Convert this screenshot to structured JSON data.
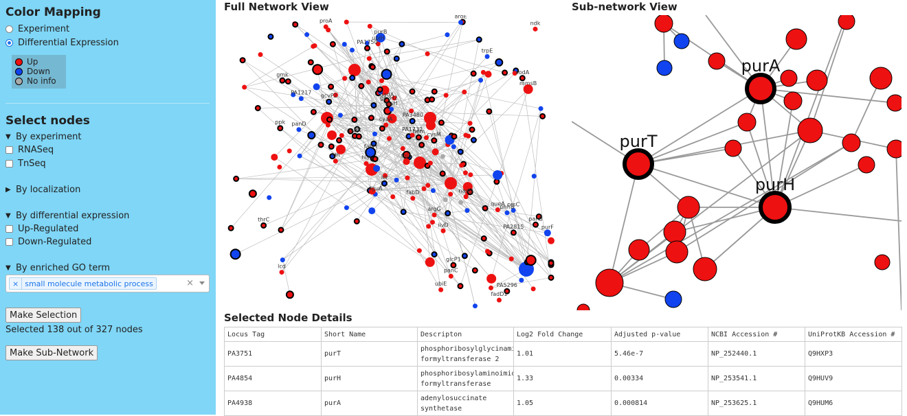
{
  "sidebar": {
    "color_mapping_title": "Color Mapping",
    "mode_experiment": "Experiment",
    "mode_diff": "Differential Expression",
    "legend": {
      "up": "Up",
      "down": "Down",
      "noinfo": "No info"
    },
    "select_nodes_title": "Select nodes",
    "by_experiment": "By experiment",
    "rnaseq": "RNASeq",
    "tnseq": "TnSeq",
    "by_localization": "By localization",
    "by_diff_expr": "By differential expression",
    "up_regulated": "Up-Regulated",
    "down_regulated": "Down-Regulated",
    "by_go": "By enriched GO term",
    "go_tag": "small molecule metabolic process",
    "go_clear": "×",
    "make_selection": "Make Selection",
    "selected_text": "Selected 138 out of 327 nodes",
    "make_subnetwork": "Make Sub-Network"
  },
  "colors": {
    "up": "#ee1111",
    "down": "#1144ee",
    "noinfo": "#aaaaaa",
    "sidebar": "#7fd6f7"
  },
  "full_network": {
    "title": "Full Network View",
    "labels": [
      "trpE",
      "PA3480",
      "fabH",
      "purK",
      "codA",
      "ndk",
      "cyaA",
      "fadD1",
      "fabD",
      "ppk",
      "PA5296",
      "gmk",
      "phhB",
      "cysM",
      "PA2815",
      "dguA",
      "hisI",
      "PA1217",
      "lcd",
      "prsC",
      "mmsB",
      "dadA",
      "alr",
      "ldh",
      "ilvD",
      "argG",
      "PA1750",
      "ubiE",
      "ubiH",
      "folA",
      "glcP1",
      "gcvP2",
      "hisH",
      "gcvH2",
      "queA",
      "purF",
      "panB",
      "aroE",
      "thrC",
      "proA",
      "PA1732",
      "purB",
      "hem",
      "panC",
      "panD",
      "nadD"
    ]
  },
  "sub_network": {
    "title": "Sub-network View",
    "labels": {
      "purA": "purA",
      "purT": "purT",
      "purH": "purH"
    }
  },
  "details": {
    "title": "Selected Node Details",
    "columns": [
      "Locus Tag",
      "Short Name",
      "Descripton",
      "Log2 Fold Change",
      "Adjusted p-value",
      "NCBI Accession #",
      "UniProtKB Accession #"
    ],
    "rows": [
      {
        "locus": "PA3751",
        "name": "purT",
        "desc": "phosphoribosylglycinamide formyltransferase 2",
        "log2": "1.01",
        "padj": "5.46e-7",
        "ncbi": "NP_252440.1",
        "uniprot": "Q9HXP3"
      },
      {
        "locus": "PA4854",
        "name": "purH",
        "desc": "phosphoribosylaminoimidazole formyltransferase",
        "log2": "1.33",
        "padj": "0.00334",
        "ncbi": "NP_253541.1",
        "uniprot": "Q9HUV9"
      },
      {
        "locus": "PA4938",
        "name": "purA",
        "desc": "adenylosuccinate synthetase",
        "log2": "1.05",
        "padj": "0.000814",
        "ncbi": "NP_253625.1",
        "uniprot": "Q9HUM6"
      }
    ]
  }
}
